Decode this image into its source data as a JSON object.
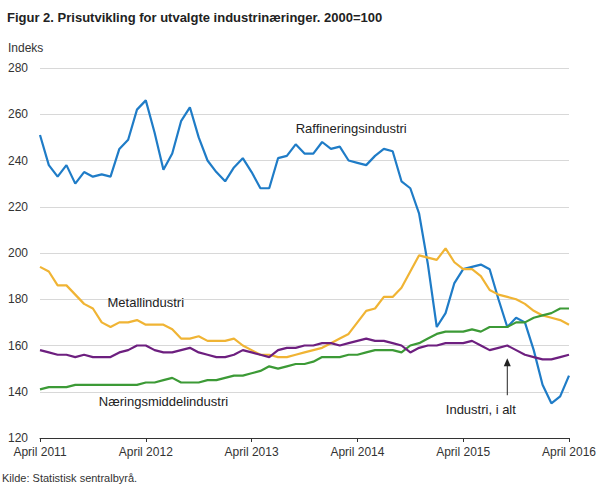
{
  "chart_data": {
    "type": "line",
    "title": "Figur 2. Prisutvikling for utvalgte industrinæringer. 2000=100",
    "ylabel": "Indeks",
    "source": "Kilde: Statistisk sentralbyrå.",
    "categories": [
      "April 2011",
      null,
      null,
      null,
      null,
      null,
      null,
      null,
      null,
      null,
      null,
      null,
      "April 2012",
      null,
      null,
      null,
      null,
      null,
      null,
      null,
      null,
      null,
      null,
      null,
      "April 2013",
      null,
      null,
      null,
      null,
      null,
      null,
      null,
      null,
      null,
      null,
      null,
      "April 2014",
      null,
      null,
      null,
      null,
      null,
      null,
      null,
      null,
      null,
      null,
      null,
      "April 2015",
      null,
      null,
      null,
      null,
      null,
      null,
      null,
      null,
      null,
      null,
      null,
      "April 2016"
    ],
    "series": [
      {
        "name": "Raffineringsindustri",
        "color": "#1f7cc7",
        "values": [
          251,
          238,
          233,
          238,
          230,
          235,
          233,
          234,
          233,
          245,
          249,
          262,
          266,
          252,
          236,
          243,
          257,
          263,
          250,
          240,
          235,
          231,
          237,
          241,
          235,
          228,
          228,
          241,
          242,
          247,
          243,
          243,
          248,
          245,
          246,
          240,
          239,
          238,
          242,
          245,
          244,
          231,
          228,
          217,
          195,
          168,
          174,
          187,
          193,
          194,
          195,
          193,
          180,
          168,
          172,
          170,
          158,
          143,
          135,
          138,
          147
        ]
      },
      {
        "name": "Metallindustri",
        "color": "#f0b434",
        "values": [
          194,
          192,
          186,
          186,
          182,
          178,
          176,
          170,
          168,
          170,
          170,
          171,
          169,
          169,
          169,
          167,
          163,
          163,
          164,
          162,
          162,
          162,
          163,
          160,
          158,
          156,
          156,
          155,
          155,
          156,
          157,
          158,
          159,
          161,
          163,
          165,
          170,
          175,
          176,
          181,
          181,
          185,
          192,
          199,
          198,
          197,
          202,
          196,
          193,
          193,
          190,
          184,
          182,
          181,
          180,
          178,
          175,
          173,
          172,
          171,
          169
        ]
      },
      {
        "name": "Næringsmiddelindustri",
        "color": "#3c9a36",
        "values": [
          141,
          142,
          142,
          142,
          143,
          143,
          143,
          143,
          143,
          143,
          143,
          143,
          144,
          144,
          145,
          146,
          144,
          144,
          144,
          145,
          145,
          146,
          147,
          147,
          148,
          149,
          151,
          150,
          151,
          152,
          152,
          153,
          155,
          155,
          155,
          156,
          156,
          157,
          158,
          158,
          158,
          157,
          160,
          161,
          163,
          165,
          166,
          166,
          166,
          167,
          166,
          168,
          168,
          168,
          170,
          170,
          172,
          173,
          174,
          176,
          176
        ]
      },
      {
        "name": "Industri, i alt",
        "color": "#6d1f7f",
        "values": [
          158,
          157,
          156,
          156,
          155,
          156,
          155,
          155,
          155,
          157,
          158,
          160,
          160,
          158,
          157,
          157,
          158,
          159,
          157,
          156,
          155,
          155,
          156,
          158,
          157,
          156,
          155,
          158,
          159,
          159,
          160,
          160,
          161,
          161,
          160,
          161,
          162,
          163,
          162,
          162,
          161,
          160,
          157,
          159,
          160,
          160,
          161,
          161,
          161,
          162,
          160,
          158,
          159,
          160,
          158,
          156,
          155,
          154,
          154,
          155,
          156
        ]
      }
    ],
    "ylim": [
      120,
      280
    ],
    "yticks": [
      120,
      140,
      160,
      180,
      200,
      220,
      240,
      260,
      280
    ],
    "grid": true
  }
}
